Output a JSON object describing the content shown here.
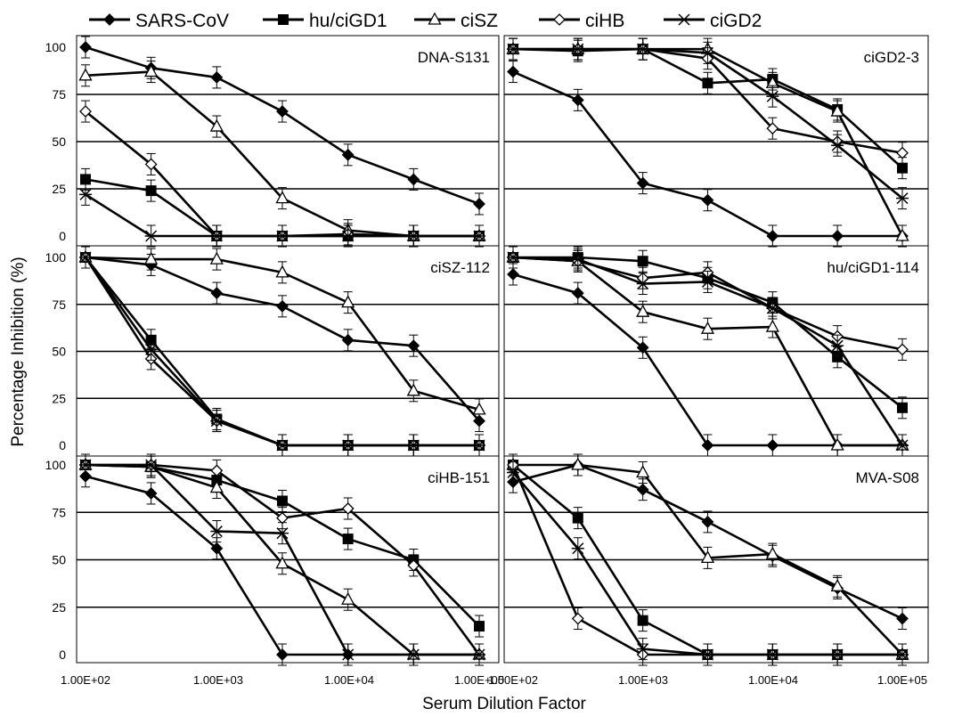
{
  "chart_data": {
    "type": "line",
    "xlabel": "Serum Dilution Factor",
    "ylabel": "Percentage Inhibition (%)",
    "xscale": "log",
    "ylim": [
      0,
      100
    ],
    "yticks": [
      "0",
      "25",
      "50",
      "75",
      "100"
    ],
    "xtick_labels": [
      "1.00E+02",
      "1.00E+03",
      "1.00E+04",
      "1.00E+05"
    ],
    "legend_position": "top",
    "legend": [
      {
        "name": "SARS-CoV",
        "marker": "diamond-filled"
      },
      {
        "name": "hu/ciGD1",
        "marker": "square-filled"
      },
      {
        "name": "ciSZ",
        "marker": "triangle-open"
      },
      {
        "name": "ciHB",
        "marker": "diamond-open"
      },
      {
        "name": "ciGD2",
        "marker": "asterisk"
      }
    ],
    "x": [
      100,
      316,
      1000,
      3160,
      10000,
      31600,
      100000
    ],
    "panels": [
      {
        "label": "DNA-S131",
        "series": [
          {
            "name": "SARS-CoV",
            "values": [
              100,
              89,
              84,
              66,
              43,
              30,
              17
            ]
          },
          {
            "name": "hu/ciGD1",
            "values": [
              30,
              24,
              0,
              0,
              0,
              0,
              0
            ]
          },
          {
            "name": "ciSZ",
            "values": [
              85,
              87,
              58,
              20,
              3,
              0,
              0
            ]
          },
          {
            "name": "ciHB",
            "values": [
              66,
              38,
              0,
              0,
              1,
              0,
              0
            ]
          },
          {
            "name": "ciGD2",
            "values": [
              22,
              0,
              0,
              0,
              0,
              0,
              0
            ]
          }
        ]
      },
      {
        "label": "ciGD2-3",
        "series": [
          {
            "name": "SARS-CoV",
            "values": [
              87,
              72,
              28,
              19,
              0,
              0,
              0
            ]
          },
          {
            "name": "hu/ciGD1",
            "values": [
              99,
              98,
              99,
              81,
              83,
              67,
              36
            ]
          },
          {
            "name": "ciSZ",
            "values": [
              99,
              99,
              99,
              99,
              81,
              66,
              0
            ]
          },
          {
            "name": "ciHB",
            "values": [
              99,
              99,
              99,
              94,
              57,
              50,
              44
            ]
          },
          {
            "name": "ciGD2",
            "values": [
              99,
              99,
              99,
              97,
              74,
              48,
              20
            ]
          }
        ]
      },
      {
        "label": "ciSZ-112",
        "series": [
          {
            "name": "SARS-CoV",
            "values": [
              100,
              96,
              81,
              74,
              56,
              53,
              13
            ]
          },
          {
            "name": "hu/ciGD1",
            "values": [
              100,
              56,
              14,
              0,
              0,
              0,
              0
            ]
          },
          {
            "name": "ciSZ",
            "values": [
              100,
              99,
              99,
              92,
              76,
              29,
              19
            ]
          },
          {
            "name": "ciHB",
            "values": [
              100,
              46,
              13,
              0,
              0,
              0,
              0
            ]
          },
          {
            "name": "ciGD2",
            "values": [
              100,
              51,
              13,
              0,
              0,
              0,
              0
            ]
          }
        ]
      },
      {
        "label": "hu/ciGD1-114",
        "series": [
          {
            "name": "SARS-CoV",
            "values": [
              91,
              81,
              52,
              0,
              0,
              0,
              0
            ]
          },
          {
            "name": "hu/ciGD1",
            "values": [
              100,
              100,
              98,
              89,
              76,
              47,
              20
            ]
          },
          {
            "name": "ciSZ",
            "values": [
              100,
              98,
              71,
              62,
              63,
              0,
              0
            ]
          },
          {
            "name": "ciHB",
            "values": [
              100,
              98,
              89,
              92,
              73,
              58,
              51
            ]
          },
          {
            "name": "ciGD2",
            "values": [
              100,
              99,
              86,
              87,
              73,
              53,
              0
            ]
          }
        ]
      },
      {
        "label": "ciHB-151",
        "series": [
          {
            "name": "SARS-CoV",
            "values": [
              94,
              85,
              56,
              0,
              0,
              0,
              0
            ]
          },
          {
            "name": "hu/ciGD1",
            "values": [
              100,
              99,
              92,
              81,
              61,
              50,
              15
            ]
          },
          {
            "name": "ciSZ",
            "values": [
              100,
              99,
              88,
              48,
              29,
              0,
              0
            ]
          },
          {
            "name": "ciHB",
            "values": [
              100,
              100,
              97,
              72,
              77,
              47,
              0
            ]
          },
          {
            "name": "ciGD2",
            "values": [
              100,
              100,
              65,
              64,
              0,
              0,
              0
            ]
          }
        ]
      },
      {
        "label": "MVA-S08",
        "series": [
          {
            "name": "SARS-CoV",
            "values": [
              91,
              100,
              87,
              70,
              52,
              35,
              19
            ]
          },
          {
            "name": "hu/ciGD1",
            "values": [
              100,
              72,
              18,
              0,
              0,
              0,
              0
            ]
          },
          {
            "name": "ciSZ",
            "values": [
              100,
              100,
              96,
              51,
              53,
              36,
              0
            ]
          },
          {
            "name": "ciHB",
            "values": [
              100,
              19,
              0,
              0,
              0,
              0,
              0
            ]
          },
          {
            "name": "ciGD2",
            "values": [
              96,
              56,
              3,
              0,
              0,
              0,
              0
            ]
          }
        ]
      }
    ]
  }
}
